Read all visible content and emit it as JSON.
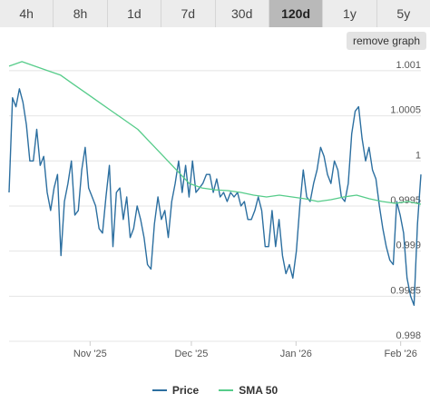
{
  "tabs": [
    {
      "label": "4h"
    },
    {
      "label": "8h"
    },
    {
      "label": "1d"
    },
    {
      "label": "7d"
    },
    {
      "label": "30d"
    },
    {
      "label": "120d",
      "active": true
    },
    {
      "label": "1y"
    },
    {
      "label": "5y"
    }
  ],
  "remove_graph_label": "remove graph",
  "colors": {
    "price": "#2c6fa0",
    "sma": "#56cc8a",
    "grid": "#e4e4e4"
  },
  "legend": {
    "price": "Price",
    "sma": "SMA 50"
  },
  "chart_data": {
    "type": "line",
    "x_start": "2025-10-08",
    "x_end": "2026-02-07",
    "x_ticks": [
      {
        "date": "2025-11-01",
        "label": "Nov '25"
      },
      {
        "date": "2025-12-01",
        "label": "Dec '25"
      },
      {
        "date": "2026-01-01",
        "label": "Jan '26"
      },
      {
        "date": "2026-02-01",
        "label": "Feb '26"
      }
    ],
    "y_ticks": [
      {
        "value": 0.998,
        "label": "0.998"
      },
      {
        "value": 0.9985,
        "label": "0.9985"
      },
      {
        "value": 0.999,
        "label": "0.999"
      },
      {
        "value": 0.9995,
        "label": "0.9995"
      },
      {
        "value": 1.0,
        "label": "1"
      },
      {
        "value": 1.0005,
        "label": "1.0005"
      },
      {
        "value": 1.001,
        "label": "1.001"
      }
    ],
    "ylim": [
      0.998,
      1.0012
    ],
    "grid": true,
    "legend_position": "bottom",
    "series": [
      {
        "name": "Price",
        "values": [
          0.99965,
          1.0007,
          1.0006,
          1.0008,
          1.00065,
          1.0004,
          1.0,
          1.0,
          1.00035,
          0.99995,
          1.00005,
          0.99965,
          0.99945,
          0.9997,
          0.99985,
          0.99895,
          0.99955,
          0.99975,
          1.0,
          0.9994,
          0.99945,
          0.9999,
          1.00015,
          0.9997,
          0.9996,
          0.9995,
          0.99925,
          0.9992,
          0.9996,
          0.99995,
          0.99905,
          0.99965,
          0.9997,
          0.99935,
          0.9996,
          0.99915,
          0.99925,
          0.9995,
          0.99935,
          0.99915,
          0.99885,
          0.9988,
          0.9993,
          0.9996,
          0.99935,
          0.99945,
          0.99915,
          0.99955,
          0.99975,
          1.0,
          0.99965,
          0.99995,
          0.9996,
          1.0,
          0.99965,
          0.9997,
          0.99975,
          0.99985,
          0.99985,
          0.99965,
          0.9998,
          0.9996,
          0.99965,
          0.99955,
          0.99965,
          0.9996,
          0.99965,
          0.9995,
          0.99955,
          0.99935,
          0.99935,
          0.99945,
          0.9996,
          0.99945,
          0.99905,
          0.99905,
          0.99945,
          0.99905,
          0.99935,
          0.99895,
          0.99875,
          0.99885,
          0.9987,
          0.999,
          0.9995,
          0.9999,
          0.9996,
          0.99955,
          0.99975,
          0.9999,
          1.00015,
          1.00005,
          0.99985,
          0.99975,
          1.0,
          0.9999,
          0.9996,
          0.99955,
          0.99975,
          1.0003,
          1.00055,
          1.0006,
          1.00025,
          1.0,
          1.00015,
          0.9999,
          0.9998,
          0.9995,
          0.99925,
          0.99905,
          0.9989,
          0.99885,
          0.99955,
          0.9994,
          0.9992,
          0.9987,
          0.9985,
          0.9984,
          0.9993,
          0.99985
        ]
      },
      {
        "name": "SMA 50",
        "values": [
          1.00105,
          1.0011,
          1.00105,
          1.001,
          1.00095,
          1.00085,
          1.00075,
          1.00065,
          1.00055,
          1.00045,
          1.00035,
          1.0002,
          1.00005,
          0.9999,
          0.99975,
          0.9997,
          0.99968,
          0.99967,
          0.99965,
          0.99962,
          0.9996,
          0.99962,
          0.9996,
          0.99958,
          0.99955,
          0.99957,
          0.9996,
          0.99962,
          0.99958,
          0.99955,
          0.99953,
          0.99955,
          0.99952
        ]
      }
    ]
  }
}
